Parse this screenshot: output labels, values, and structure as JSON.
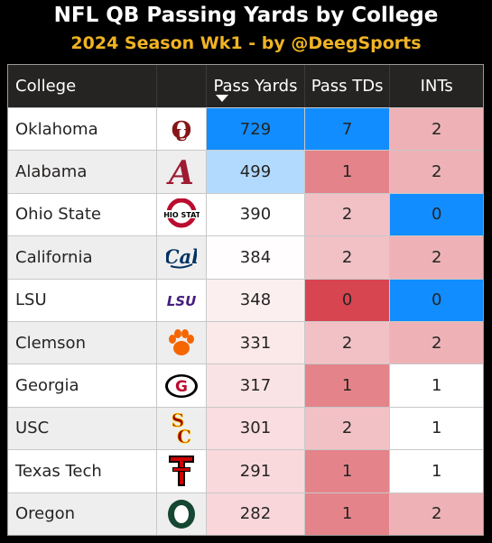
{
  "title": "NFL QB Passing Yards by College",
  "subtitle": "2024 Season Wk1 - by @DeegSports",
  "colors": {
    "title": "#ffffff",
    "subtitle": "#f0b323",
    "header_bg": "#252423",
    "high_blue": "#118dff",
    "light_blue": "#a8d4ff",
    "neutral": "#ffffff",
    "low_red": "#d64550"
  },
  "chart_data": {
    "type": "table",
    "columns": [
      "College",
      "",
      "Pass Yards",
      "Pass TDs",
      "INTs"
    ],
    "sort": {
      "column": "Pass Yards",
      "order": "descending"
    },
    "rows": [
      {
        "college": "Oklahoma",
        "logo": "oklahoma-ou-logo-icon",
        "pass_yards": 729,
        "pass_tds": 7,
        "ints": 2
      },
      {
        "college": "Alabama",
        "logo": "alabama-script-a-logo-icon",
        "pass_yards": 499,
        "pass_tds": 1,
        "ints": 2
      },
      {
        "college": "Ohio State",
        "logo": "ohio-state-logo-icon",
        "pass_yards": 390,
        "pass_tds": 2,
        "ints": 0
      },
      {
        "college": "California",
        "logo": "cal-script-logo-icon",
        "pass_yards": 384,
        "pass_tds": 2,
        "ints": 2
      },
      {
        "college": "LSU",
        "logo": "lsu-logo-icon",
        "pass_yards": 348,
        "pass_tds": 0,
        "ints": 0
      },
      {
        "college": "Clemson",
        "logo": "clemson-paw-logo-icon",
        "pass_yards": 331,
        "pass_tds": 2,
        "ints": 2
      },
      {
        "college": "Georgia",
        "logo": "georgia-g-logo-icon",
        "pass_yards": 317,
        "pass_tds": 1,
        "ints": 1
      },
      {
        "college": "USC",
        "logo": "usc-sc-logo-icon",
        "pass_yards": 301,
        "pass_tds": 2,
        "ints": 1
      },
      {
        "college": "Texas Tech",
        "logo": "texas-tech-double-t-logo-icon",
        "pass_yards": 291,
        "pass_tds": 1,
        "ints": 1
      },
      {
        "college": "Oregon",
        "logo": "oregon-o-logo-icon",
        "pass_yards": 282,
        "pass_tds": 1,
        "ints": 2
      }
    ],
    "conditional_format": {
      "pass_yards": {
        "min": 282,
        "mid": 390,
        "max": 729,
        "min_color": "#f8d6d9",
        "mid_color": "#ffffff",
        "max_color": "#118dff"
      },
      "pass_tds": {
        "min": 0,
        "mid": 3,
        "max": 7,
        "min_color": "#d64550",
        "mid_color": "#ffffff",
        "max_color": "#118dff"
      },
      "ints": {
        "min": 0,
        "mid": 1,
        "max": 2,
        "min_color": "#118dff",
        "mid_color": "#ffffff",
        "max_color": "#eeb2b6"
      }
    }
  }
}
